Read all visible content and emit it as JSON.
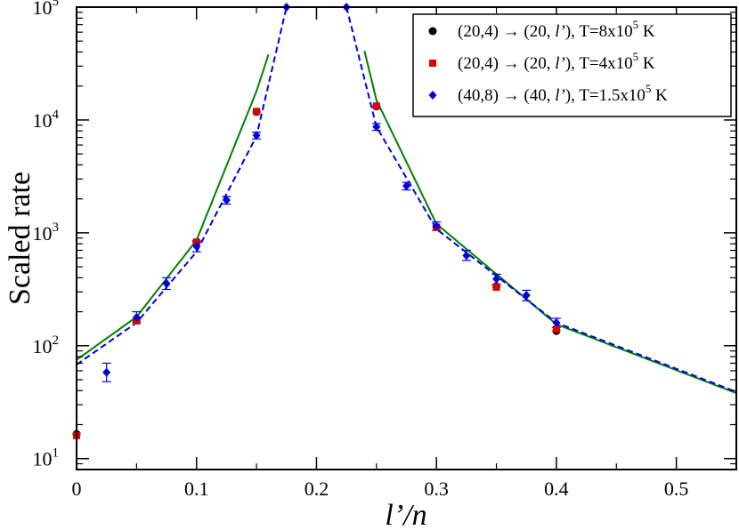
{
  "chart_data": {
    "type": "scatter",
    "x_scale": "linear",
    "y_scale": "log",
    "xlim": [
      0,
      0.55
    ],
    "ylim": [
      8,
      100000
    ],
    "xlabel": "l’/n",
    "ylabel": "Scaled rate",
    "x_ticks": [
      {
        "value": 0,
        "label": "0"
      },
      {
        "value": 0.1,
        "label": "0.1"
      },
      {
        "value": 0.2,
        "label": "0.2"
      },
      {
        "value": 0.3,
        "label": "0.3"
      },
      {
        "value": 0.4,
        "label": "0.4"
      },
      {
        "value": 0.5,
        "label": "0.5"
      }
    ],
    "y_ticks": [
      {
        "value": 10,
        "base": "10",
        "exp": "1"
      },
      {
        "value": 100,
        "base": "10",
        "exp": "2"
      },
      {
        "value": 1000,
        "base": "10",
        "exp": "3"
      },
      {
        "value": 10000,
        "base": "10",
        "exp": "4"
      },
      {
        "value": 100000,
        "base": "10",
        "exp": "5"
      }
    ],
    "legend_position": "top-right",
    "series": [
      {
        "name": "(20,4) → (20, l’), T=8x10^5 K",
        "legend_parts": {
          "pre": "(20,4) → (20, ",
          "italic": "l’",
          "mid": "), T=8x10",
          "sup": "5",
          "post": " K"
        },
        "marker": "circle",
        "color": "#000000",
        "points": [
          {
            "x": 0.0,
            "y": 16.5
          },
          {
            "x": 0.05,
            "y": 168
          },
          {
            "x": 0.1,
            "y": 820
          },
          {
            "x": 0.15,
            "y": 11800
          },
          {
            "x": 0.25,
            "y": 13200
          },
          {
            "x": 0.3,
            "y": 1130
          },
          {
            "x": 0.35,
            "y": 335
          },
          {
            "x": 0.4,
            "y": 135
          }
        ]
      },
      {
        "name": "(20,4) → (20, l’), T=4x10^5 K",
        "legend_parts": {
          "pre": "(20,4) → (20, ",
          "italic": "l’",
          "mid": "), T=4x10",
          "sup": "5",
          "post": " K"
        },
        "marker": "square",
        "color": "#e00000",
        "points": [
          {
            "x": 0.0,
            "y": 16.0
          },
          {
            "x": 0.05,
            "y": 166
          },
          {
            "x": 0.1,
            "y": 830
          },
          {
            "x": 0.15,
            "y": 11900
          },
          {
            "x": 0.25,
            "y": 13300
          },
          {
            "x": 0.3,
            "y": 1120
          },
          {
            "x": 0.35,
            "y": 330
          },
          {
            "x": 0.4,
            "y": 140
          }
        ]
      },
      {
        "name": "(40,8) → (40, l’), T=1.5x10^5 K",
        "legend_parts": {
          "pre": "(40,8) → (40, ",
          "italic": "l’",
          "mid": "), T=1.5x10",
          "sup": "5",
          "post": " K"
        },
        "marker": "diamond",
        "color": "#0000e0",
        "points": [
          {
            "x": 0.025,
            "y": 58,
            "err_low": 48,
            "err_high": 70
          },
          {
            "x": 0.05,
            "y": 178,
            "err_low": 160,
            "err_high": 200
          },
          {
            "x": 0.075,
            "y": 355,
            "err_low": 315,
            "err_high": 400
          },
          {
            "x": 0.1,
            "y": 760,
            "err_low": 680,
            "err_high": 850
          },
          {
            "x": 0.125,
            "y": 1950,
            "err_low": 1800,
            "err_high": 2100
          },
          {
            "x": 0.15,
            "y": 7300,
            "err_low": 6800,
            "err_high": 7800
          },
          {
            "x": 0.175,
            "y": 100000
          },
          {
            "x": 0.225,
            "y": 100000
          },
          {
            "x": 0.25,
            "y": 8700,
            "err_low": 8100,
            "err_high": 9300
          },
          {
            "x": 0.275,
            "y": 2600,
            "err_low": 2400,
            "err_high": 2800
          },
          {
            "x": 0.3,
            "y": 1150,
            "err_low": 1050,
            "err_high": 1250
          },
          {
            "x": 0.325,
            "y": 630,
            "err_low": 570,
            "err_high": 700
          },
          {
            "x": 0.35,
            "y": 390,
            "err_low": 350,
            "err_high": 430
          },
          {
            "x": 0.375,
            "y": 280,
            "err_low": 250,
            "err_high": 310
          },
          {
            "x": 0.4,
            "y": 160,
            "err_low": 145,
            "err_high": 175
          }
        ]
      }
    ],
    "curves": [
      {
        "style": "solid",
        "color": "#008000",
        "segments": [
          [
            [
              0.0,
              75
            ],
            [
              0.05,
              180
            ],
            [
              0.1,
              860
            ],
            [
              0.15,
              18000
            ],
            [
              0.16,
              38000
            ]
          ],
          [
            [
              0.24,
              41000
            ],
            [
              0.25,
              15000
            ],
            [
              0.3,
              1200
            ],
            [
              0.4,
              155
            ],
            [
              0.55,
              38
            ]
          ]
        ]
      },
      {
        "style": "dashed",
        "color": "#0000e0",
        "segments": [
          [
            [
              0.0,
              68
            ],
            [
              0.05,
              160
            ],
            [
              0.1,
              680
            ],
            [
              0.15,
              7200
            ],
            [
              0.175,
              100000
            ]
          ],
          [
            [
              0.225,
              100000
            ],
            [
              0.25,
              8700
            ],
            [
              0.3,
              1080
            ],
            [
              0.4,
              160
            ],
            [
              0.55,
              39
            ]
          ]
        ]
      }
    ]
  }
}
